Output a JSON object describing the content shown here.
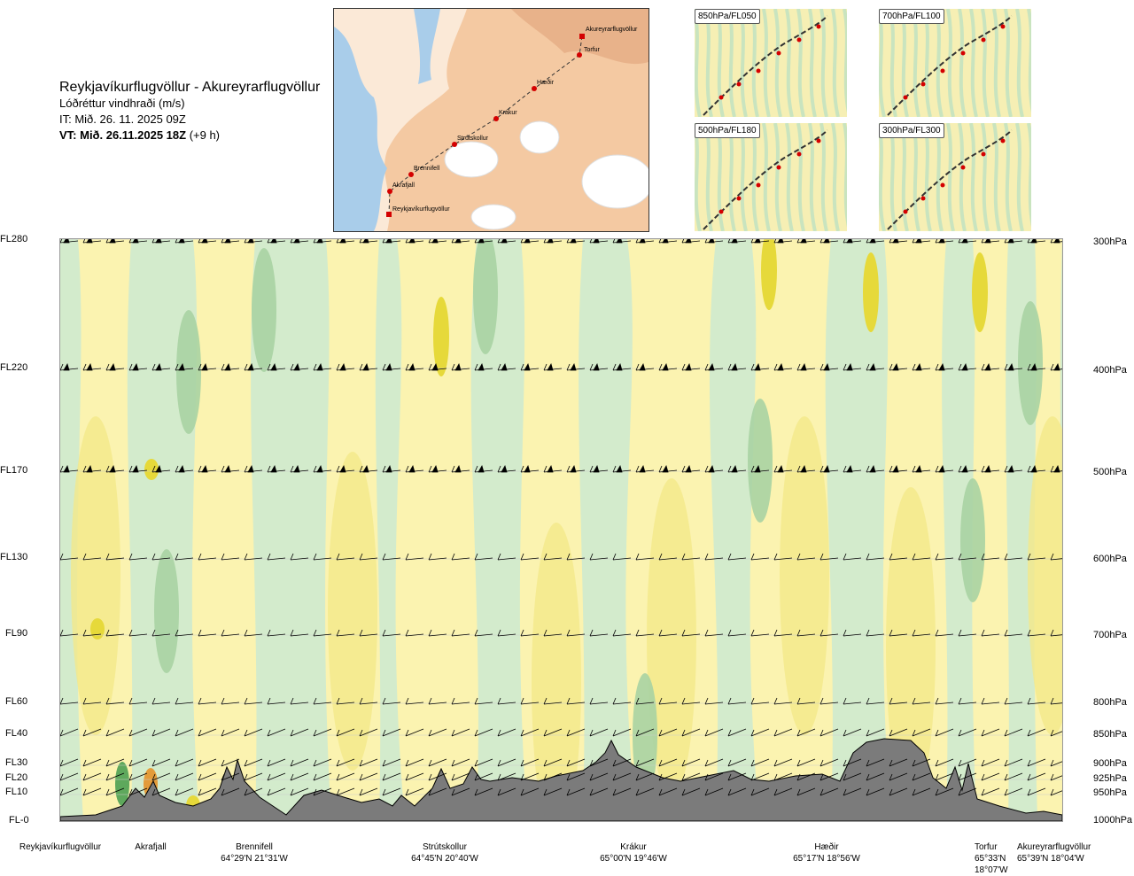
{
  "header": {
    "route": "Reykjavíkurflugvöllur - Akureyrarflugvöllur",
    "subtitle": "Lóðréttur vindhraði (m/s)",
    "it": "IT: Mið. 26. 11. 2025 09Z",
    "vt_bold": "VT: Mið. 26.11.2025 18Z",
    "vt_suffix": " (+9 h)"
  },
  "map": {
    "waypoints": [
      {
        "name": "Akureyrarflugvöllur"
      },
      {
        "name": "Torfur"
      },
      {
        "name": "Hæðir"
      },
      {
        "name": "Krákur"
      },
      {
        "name": "Strútskollur"
      },
      {
        "name": "Brennifell"
      },
      {
        "name": "Akrafjall"
      },
      {
        "name": "Reykjavíkurflugvöllur"
      }
    ]
  },
  "thumbnails": [
    {
      "label": "850hPa/FL050"
    },
    {
      "label": "700hPa/FL100"
    },
    {
      "label": "500hPa/FL180"
    },
    {
      "label": "300hPa/FL300"
    }
  ],
  "flight_levels": [
    "FL280",
    "FL220",
    "FL170",
    "FL130",
    "FL90",
    "FL60",
    "FL40",
    "FL30",
    "FL20",
    "FL10",
    "FL-0"
  ],
  "pressure_levels": [
    "300hPa",
    "400hPa",
    "500hPa",
    "600hPa",
    "700hPa",
    "800hPa",
    "850hPa",
    "900hPa",
    "925hPa",
    "950hPa",
    "1000hPa"
  ],
  "bottom_waypoints": [
    {
      "name": "Reykjavíkurflugvöllur",
      "coord": ""
    },
    {
      "name": "Akrafjall",
      "coord": ""
    },
    {
      "name": "Brennifell",
      "coord": "64°29'N 21°31'W"
    },
    {
      "name": "Strútskollur",
      "coord": "64°45'N 20°40'W"
    },
    {
      "name": "Krákur",
      "coord": "65°00'N 19°46'W"
    },
    {
      "name": "Hæðir",
      "coord": "65°17'N 18°56'W"
    },
    {
      "name": "Torfur",
      "coord": "65°33'N 18°07'W"
    },
    {
      "name": "Akureyrarflugvöllur",
      "coord": "65°39'N 18°04'W"
    }
  ],
  "colors": {
    "sink_light": "#fbf3b0",
    "sink_mid": "#f4e98a",
    "sink_strong": "#e6d93a",
    "rise_light": "#d3ebcc",
    "rise_mid": "#a9d3a3",
    "rise_strong": "#5ea85c",
    "terrain": "#7b7b7b",
    "track": "#d40000"
  }
}
